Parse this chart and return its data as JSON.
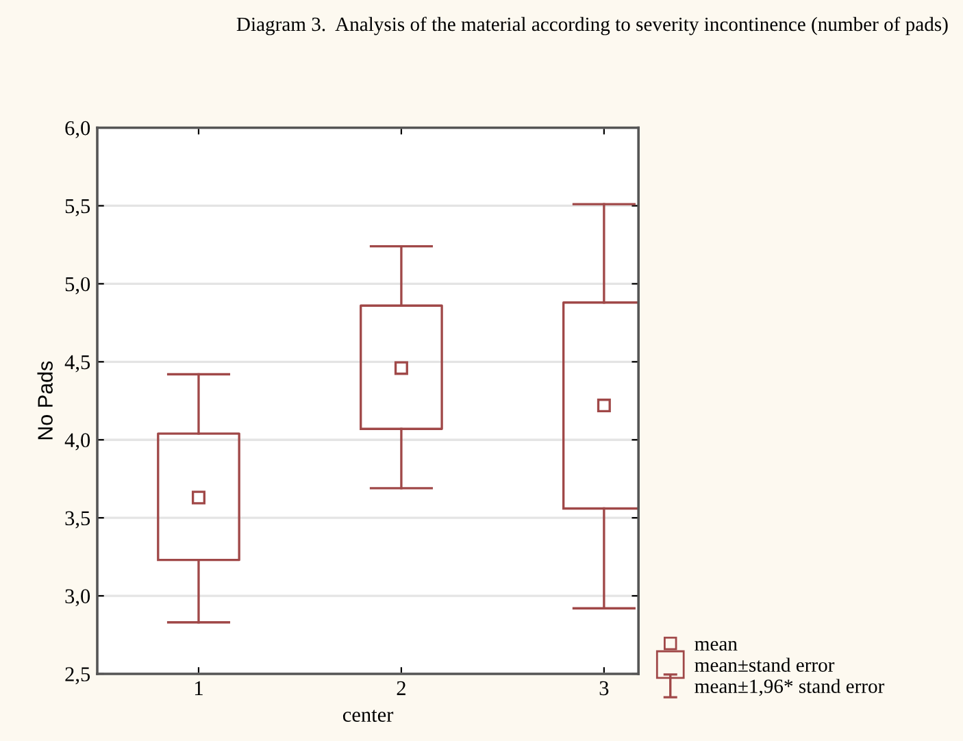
{
  "chart_data": {
    "type": "box",
    "title": "Diagram 3.  Analysis of the material according to severity incontinence (number of pads)",
    "xlabel": "center",
    "ylabel": "No Pads",
    "categories": [
      "1",
      "2",
      "3"
    ],
    "ylim": [
      2.5,
      6.0
    ],
    "yticks": [
      {
        "value": 2.5,
        "label": "2,5"
      },
      {
        "value": 3.0,
        "label": "3,0"
      },
      {
        "value": 3.5,
        "label": "3,5"
      },
      {
        "value": 4.0,
        "label": "4,0"
      },
      {
        "value": 4.5,
        "label": "4,5"
      },
      {
        "value": 5.0,
        "label": "5,0"
      },
      {
        "value": 5.5,
        "label": "5,5"
      },
      {
        "value": 6.0,
        "label": "6,0"
      }
    ],
    "grid": "y",
    "legend": "bottom right",
    "marker": "square",
    "series": [
      {
        "name": "mean±stand error",
        "color": "#a04848",
        "boxes": [
          {
            "low": 2.83,
            "q1": 3.23,
            "q3": 4.04,
            "high": 4.42,
            "mean": 3.63
          },
          {
            "low": 3.69,
            "q1": 4.07,
            "q3": 4.86,
            "high": 5.24,
            "mean": 4.46
          },
          {
            "low": 2.92,
            "q1": 3.56,
            "q3": 4.88,
            "high": 5.51,
            "mean": 4.22
          }
        ]
      }
    ],
    "annotations": [
      "mean",
      "mean±1,96* stand error"
    ]
  }
}
